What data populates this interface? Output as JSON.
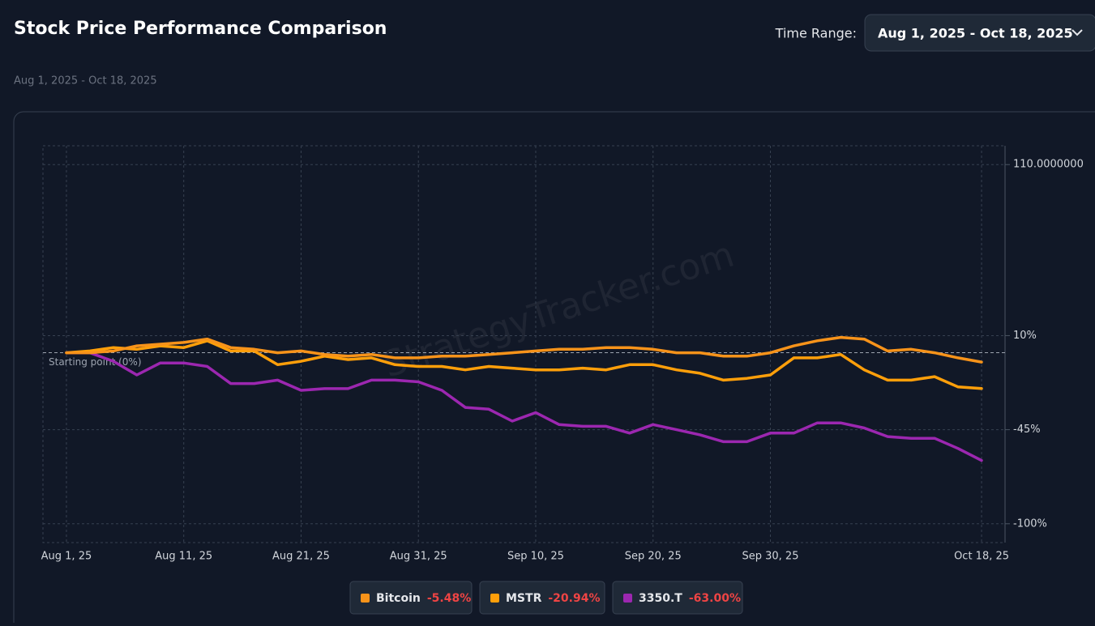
{
  "header": {
    "title": "Stock Price Performance Comparison",
    "time_range_label": "Time Range:",
    "time_range_value": "Aug 1, 2025 - Oct 18, 2025",
    "subtitle": "Aug 1, 2025 - Oct 18, 2025"
  },
  "chart_data": {
    "type": "line",
    "watermark": "StrategyTracker.com",
    "annotation": "Starting point (0%)",
    "x": [
      "2025-08-01",
      "2025-08-03",
      "2025-08-05",
      "2025-08-07",
      "2025-08-09",
      "2025-08-11",
      "2025-08-13",
      "2025-08-15",
      "2025-08-17",
      "2025-08-19",
      "2025-08-21",
      "2025-08-23",
      "2025-08-25",
      "2025-08-27",
      "2025-08-29",
      "2025-08-31",
      "2025-09-02",
      "2025-09-04",
      "2025-09-06",
      "2025-09-08",
      "2025-09-10",
      "2025-09-12",
      "2025-09-14",
      "2025-09-16",
      "2025-09-18",
      "2025-09-20",
      "2025-09-22",
      "2025-09-24",
      "2025-09-26",
      "2025-09-28",
      "2025-09-30",
      "2025-10-02",
      "2025-10-04",
      "2025-10-06",
      "2025-10-08",
      "2025-10-10",
      "2025-10-12",
      "2025-10-14",
      "2025-10-16",
      "2025-10-18"
    ],
    "series": [
      {
        "name": "Bitcoin",
        "color": "#f7931a",
        "return_label": "-5.48%",
        "values": [
          0,
          0,
          1,
          4,
          5,
          6,
          8,
          3,
          2,
          0,
          1,
          -1,
          -2,
          -1,
          -3,
          -3,
          -2,
          -2,
          -1,
          0,
          1,
          2,
          2,
          3,
          3,
          2,
          0,
          0,
          -2,
          -2,
          0,
          4,
          7,
          9,
          8,
          1,
          2,
          0,
          -3,
          -5.48
        ]
      },
      {
        "name": "MSTR",
        "color": "#ff9f0a",
        "return_label": "-20.94%",
        "values": [
          0,
          1,
          3,
          2,
          4,
          3,
          7,
          1,
          1,
          -7,
          -5,
          -2,
          -4,
          -3,
          -7,
          -8,
          -8,
          -10,
          -8,
          -9,
          -10,
          -10,
          -9,
          -10,
          -7,
          -7,
          -10,
          -12,
          -16,
          -15,
          -13,
          -3,
          -3,
          -1,
          -10,
          -16,
          -16,
          -14,
          -20,
          -20.94
        ]
      },
      {
        "name": "3350.T",
        "color": "#9c27b0",
        "return_label": "-63.00%",
        "values": [
          0,
          0,
          -5,
          -13,
          -6,
          -6,
          -8,
          -18,
          -18,
          -16,
          -22,
          -21,
          -21,
          -16,
          -16,
          -17,
          -22,
          -32,
          -33,
          -40,
          -35,
          -42,
          -43,
          -43,
          -47,
          -42,
          -45,
          -48,
          -52,
          -52,
          -47,
          -47,
          -41,
          -41,
          -44,
          -49,
          -50,
          -50,
          -56,
          -63
        ]
      }
    ],
    "xlim": [
      "2025-07-30",
      "2025-10-20"
    ],
    "xticks": [
      {
        "value": "2025-08-01",
        "label": "Aug 1, 25"
      },
      {
        "value": "2025-08-11",
        "label": "Aug 11, 25"
      },
      {
        "value": "2025-08-21",
        "label": "Aug 21, 25"
      },
      {
        "value": "2025-08-31",
        "label": "Aug 31, 25"
      },
      {
        "value": "2025-09-10",
        "label": "Sep 10, 25"
      },
      {
        "value": "2025-09-20",
        "label": "Sep 20, 25"
      },
      {
        "value": "2025-09-30",
        "label": "Sep 30, 25"
      },
      {
        "value": "2025-10-18",
        "label": "Oct 18, 25"
      }
    ],
    "ylim": [
      -111,
      121
    ],
    "yticks": [
      {
        "value": 110,
        "label": "110.0000000"
      },
      {
        "value": 10,
        "label": "10%"
      },
      {
        "value": -45,
        "label": "-45%"
      },
      {
        "value": -100,
        "label": "-100%"
      }
    ],
    "grid": true
  }
}
